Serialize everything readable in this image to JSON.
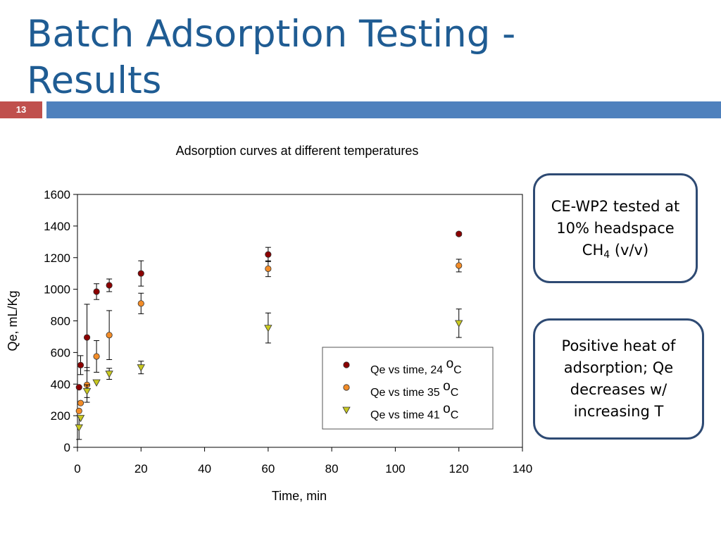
{
  "slide": {
    "title": "Batch Adsorption Testing - Results",
    "number": "13"
  },
  "callouts": [
    {
      "parts": [
        "CE-WP2 tested at 10% headspace CH",
        "4",
        " (v/v)"
      ]
    },
    {
      "text": "Positive heat of adsorption; Qe decreases w/ increasing T"
    }
  ],
  "colors": {
    "title": "#1f5c93",
    "accent_bar": "#4f81bd",
    "slide_number_bg": "#c0504d",
    "callout_border": "#2e4a73"
  },
  "chart_data": {
    "type": "scatter",
    "title": "Adsorption curves at different temperatures",
    "xlabel": "Time, min",
    "ylabel": "Qe, mL/Kg",
    "xlim": [
      0,
      140
    ],
    "ylim": [
      0,
      1600
    ],
    "xticks": [
      0,
      20,
      40,
      60,
      80,
      100,
      120,
      140
    ],
    "yticks": [
      0,
      200,
      400,
      600,
      800,
      1000,
      1200,
      1400,
      1600
    ],
    "grid": false,
    "legend_position": "bottom-right",
    "series": [
      {
        "name": "Qe vs time, 24 ",
        "name_suffix": "C",
        "superscript": "o",
        "marker": "circle",
        "color": "#8b0000",
        "points": [
          {
            "x": 0.5,
            "y": 380
          },
          {
            "x": 1,
            "y": 520,
            "err": 60
          },
          {
            "x": 3,
            "y": 695,
            "err": 210
          },
          {
            "x": 6,
            "y": 985,
            "err": 50
          },
          {
            "x": 10,
            "y": 1025,
            "err": 40
          },
          {
            "x": 20,
            "y": 1100,
            "err": 80
          },
          {
            "x": 60,
            "y": 1220,
            "err": 45
          },
          {
            "x": 120,
            "y": 1350,
            "err": 10
          }
        ]
      },
      {
        "name": "Qe vs time 35 ",
        "name_suffix": "C",
        "superscript": "o",
        "marker": "circle",
        "color": "#f28c28",
        "points": [
          {
            "x": 0.5,
            "y": 230
          },
          {
            "x": 1,
            "y": 280
          },
          {
            "x": 3,
            "y": 395,
            "err": 110
          },
          {
            "x": 6,
            "y": 575,
            "err": 100
          },
          {
            "x": 10,
            "y": 710,
            "err": 155
          },
          {
            "x": 20,
            "y": 910,
            "err": 65
          },
          {
            "x": 60,
            "y": 1130,
            "err": 50
          },
          {
            "x": 120,
            "y": 1150,
            "err": 40
          }
        ]
      },
      {
        "name": "Qe vs time 41 ",
        "name_suffix": "C",
        "superscript": "o",
        "marker": "triangle-down",
        "color": "#c8c820",
        "points": [
          {
            "x": 0.5,
            "y": 125,
            "err": 75
          },
          {
            "x": 1,
            "y": 185
          },
          {
            "x": 3,
            "y": 355,
            "err": 40
          },
          {
            "x": 6,
            "y": 410
          },
          {
            "x": 10,
            "y": 465,
            "err": 35
          },
          {
            "x": 20,
            "y": 505,
            "err": 40
          },
          {
            "x": 60,
            "y": 755,
            "err": 95
          },
          {
            "x": 120,
            "y": 785,
            "err": 90
          }
        ]
      }
    ]
  }
}
